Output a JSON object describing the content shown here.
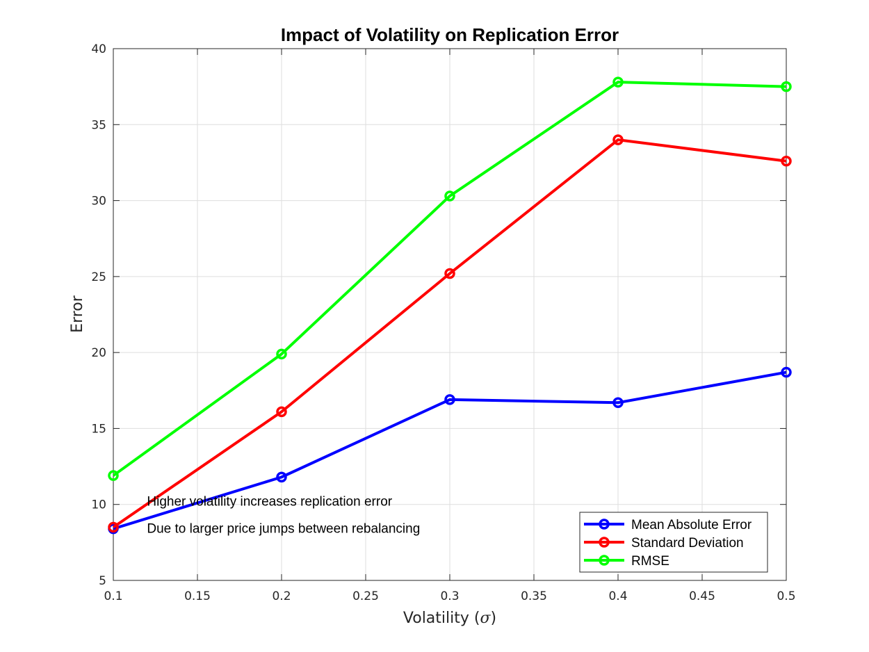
{
  "chart_data": {
    "type": "line",
    "title": "Impact of Volatility on Replication Error",
    "xlabel": "Volatility (σ)",
    "xlabel_text": "Volatility (",
    "xlabel_symbol": "σ",
    "xlabel_close": ")",
    "ylabel": "Error",
    "xlim": [
      0.1,
      0.5
    ],
    "ylim": [
      5,
      40
    ],
    "xticks": [
      "0.1",
      "0.15",
      "0.2",
      "0.25",
      "0.3",
      "0.35",
      "0.4",
      "0.45",
      "0.5"
    ],
    "yticks": [
      "5",
      "10",
      "15",
      "20",
      "25",
      "30",
      "35",
      "40"
    ],
    "grid": true,
    "legend_position": "bottom-right",
    "x": [
      0.1,
      0.2,
      0.3,
      0.4,
      0.5
    ],
    "series": [
      {
        "name": "Mean Absolute Error",
        "color": "#0000ff",
        "values": [
          8.4,
          11.8,
          16.9,
          16.7,
          18.7
        ]
      },
      {
        "name": "Standard Deviation",
        "color": "#ff0000",
        "values": [
          8.5,
          16.1,
          25.2,
          34.0,
          32.6
        ]
      },
      {
        "name": "RMSE",
        "color": "#00ff00",
        "values": [
          11.9,
          19.9,
          30.3,
          37.8,
          37.5
        ]
      }
    ],
    "annotations": [
      {
        "text": "Higher volatility increases replication error",
        "x": 0.12,
        "y": 10.2
      },
      {
        "text": "Due to larger price jumps between rebalancing",
        "x": 0.12,
        "y": 8.4
      }
    ]
  }
}
